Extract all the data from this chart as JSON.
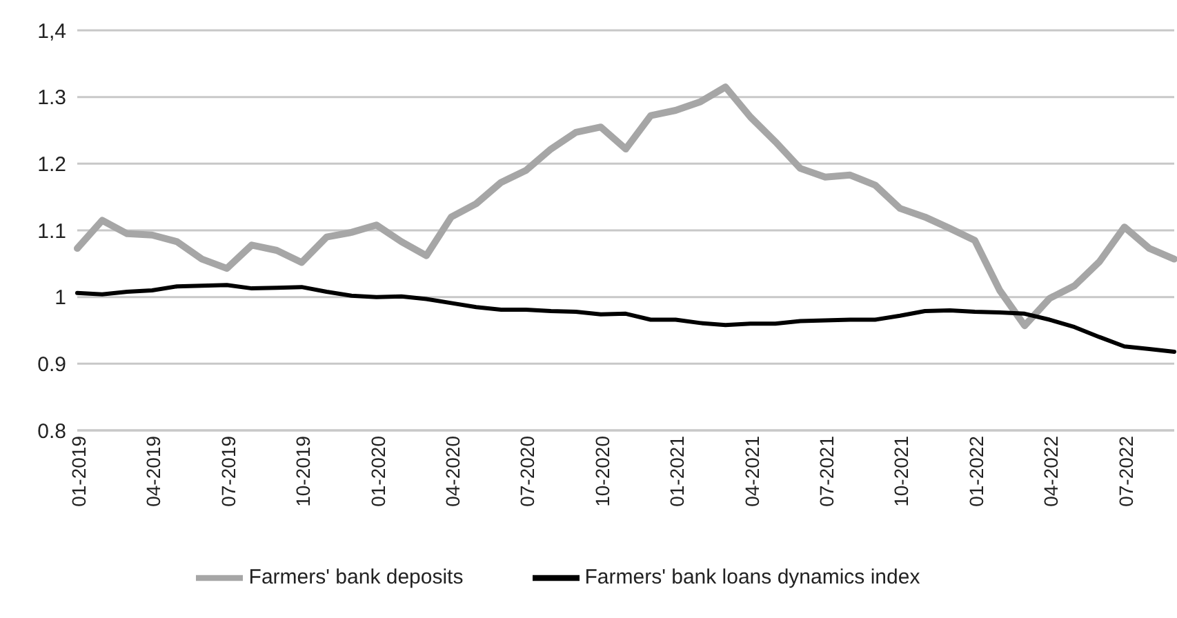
{
  "chart_data": {
    "type": "line",
    "categories": [
      "01-2019",
      null,
      null,
      "04-2019",
      null,
      null,
      "07-2019",
      null,
      null,
      "10-2019",
      null,
      null,
      "01-2020",
      null,
      null,
      "04-2020",
      null,
      null,
      "07-2020",
      null,
      null,
      "10-2020",
      null,
      null,
      "01-2021",
      null,
      null,
      "04-2021",
      null,
      null,
      "07-2021",
      null,
      null,
      "10-2021",
      null,
      null,
      "01-2022",
      null,
      null,
      "04-2022",
      null,
      null,
      "07-2022",
      null,
      null
    ],
    "series": [
      {
        "name": "Farmers' bank deposits",
        "color": "#a6a6a6",
        "values": [
          1.073,
          1.115,
          1.095,
          1.093,
          1.083,
          1.057,
          1.043,
          1.078,
          1.07,
          1.052,
          1.09,
          1.097,
          1.108,
          1.083,
          1.062,
          1.12,
          1.14,
          1.172,
          1.19,
          1.222,
          1.247,
          1.255,
          1.222,
          1.272,
          1.28,
          1.293,
          1.315,
          1.27,
          1.233,
          1.193,
          1.18,
          1.183,
          1.168,
          1.133,
          1.12,
          1.103,
          1.085,
          1.01,
          0.957,
          0.998,
          1.017,
          1.053,
          1.105,
          1.073,
          1.057
        ]
      },
      {
        "name": "Farmers' bank loans dynamics index",
        "color": "#000000",
        "values": [
          1.006,
          1.004,
          1.008,
          1.01,
          1.016,
          1.017,
          1.018,
          1.013,
          1.014,
          1.015,
          1.008,
          1.002,
          1.0,
          1.001,
          0.997,
          0.991,
          0.985,
          0.981,
          0.981,
          0.979,
          0.978,
          0.974,
          0.975,
          0.966,
          0.966,
          0.961,
          0.958,
          0.96,
          0.96,
          0.964,
          0.965,
          0.966,
          0.966,
          0.972,
          0.979,
          0.98,
          0.978,
          0.977,
          0.975,
          0.966,
          0.955,
          0.94,
          0.926,
          0.922,
          0.918
        ]
      }
    ],
    "ylim": [
      0.8,
      1.4
    ],
    "yticks": [
      0.8,
      0.9,
      1,
      1.1,
      1.2,
      1.3,
      {
        "value": 1.4,
        "label": "1,4"
      }
    ],
    "grid": "y",
    "legend": "bottom",
    "marker": "none",
    "line_style": "solid"
  }
}
